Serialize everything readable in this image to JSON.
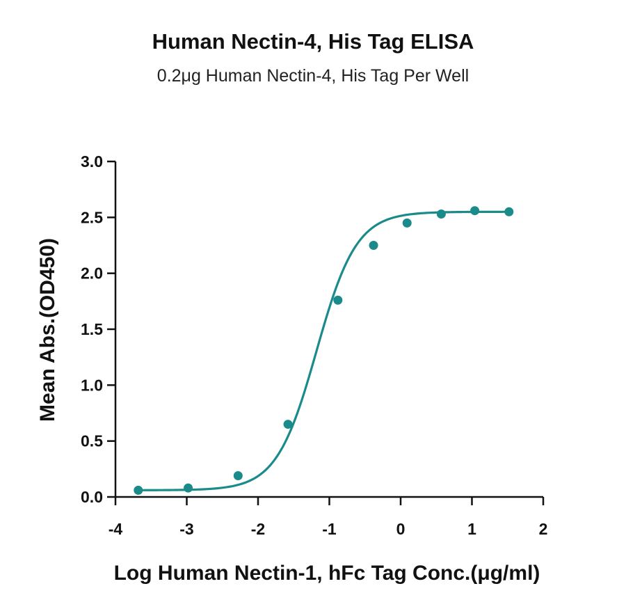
{
  "chart_data": {
    "type": "scatter",
    "title": "Human Nectin-4, His Tag ELISA",
    "subtitle": "0.2μg Human Nectin-4, His Tag Per Well",
    "xlabel": "Log Human Nectin-1, hFc Tag Conc.(μg/ml)",
    "ylabel": "Mean Abs.(OD450)",
    "xlim": [
      -4,
      2
    ],
    "ylim": [
      0,
      3.0
    ],
    "x_ticks": [
      "-4",
      "-3",
      "-2",
      "-1",
      "0",
      "1",
      "2"
    ],
    "y_ticks": [
      "0.0",
      "0.5",
      "1.0",
      "1.5",
      "2.0",
      "2.5",
      "3.0"
    ],
    "grid": false,
    "color": "#1a8a8a",
    "series": [
      {
        "x": [
          -3.68,
          -2.98,
          -2.28,
          -1.58,
          -0.88,
          -0.38,
          0.09,
          0.57,
          1.04,
          1.52
        ],
        "y": [
          0.06,
          0.08,
          0.19,
          0.65,
          1.76,
          2.25,
          2.45,
          2.53,
          2.56,
          2.55
        ],
        "fit": "4PL sigmoid"
      }
    ]
  }
}
